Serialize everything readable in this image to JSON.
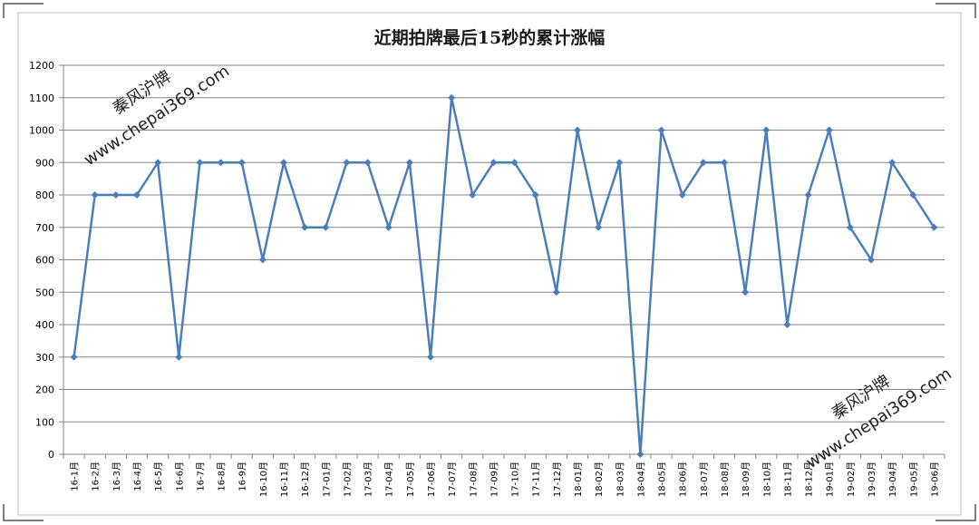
{
  "chart_data": {
    "type": "line",
    "title": "近期拍牌最后15秒的累计涨幅",
    "xlabel": "",
    "ylabel": "",
    "ylim": [
      0,
      1200
    ],
    "yticks": [
      0,
      100,
      200,
      300,
      400,
      500,
      600,
      700,
      800,
      900,
      1000,
      1100,
      1200
    ],
    "grid": true,
    "legend": "none",
    "categories": [
      "16-1月",
      "16-2月",
      "16-3月",
      "16-4月",
      "16-5月",
      "16-6月",
      "16-7月",
      "16-8月",
      "16-9月",
      "16-10月",
      "16-11月",
      "16-12月",
      "17-01月",
      "17-02月",
      "17-03月",
      "17-04月",
      "17-05月",
      "17-06月",
      "17-07月",
      "17-08月",
      "17-09月",
      "17-10月",
      "17-11月",
      "17-12月",
      "18-01月",
      "18-02月",
      "18-03月",
      "18-04月",
      "18-05月",
      "18-06月",
      "18-07月",
      "18-08月",
      "18-09月",
      "18-10月",
      "18-11月",
      "18-12月",
      "19-01月",
      "19-02月",
      "19-03月",
      "19-04月",
      "19-05月",
      "19-06月"
    ],
    "series": [
      {
        "values": [
          300,
          800,
          800,
          800,
          900,
          300,
          900,
          900,
          900,
          600,
          900,
          700,
          700,
          900,
          900,
          700,
          900,
          300,
          1100,
          800,
          900,
          900,
          800,
          500,
          1000,
          700,
          900,
          0,
          1000,
          800,
          900,
          900,
          500,
          1000,
          400,
          800,
          1000,
          700,
          600,
          900,
          800,
          700
        ]
      }
    ],
    "colors": {
      "line": "#4a7ebb",
      "grid": "#868686",
      "axis": "#868686"
    }
  },
  "watermarks": [
    {
      "line1": "秦风沪牌",
      "line2": "www.chepai369.com"
    },
    {
      "line1": "秦风沪牌",
      "line2": "www.chepai369.com"
    }
  ]
}
